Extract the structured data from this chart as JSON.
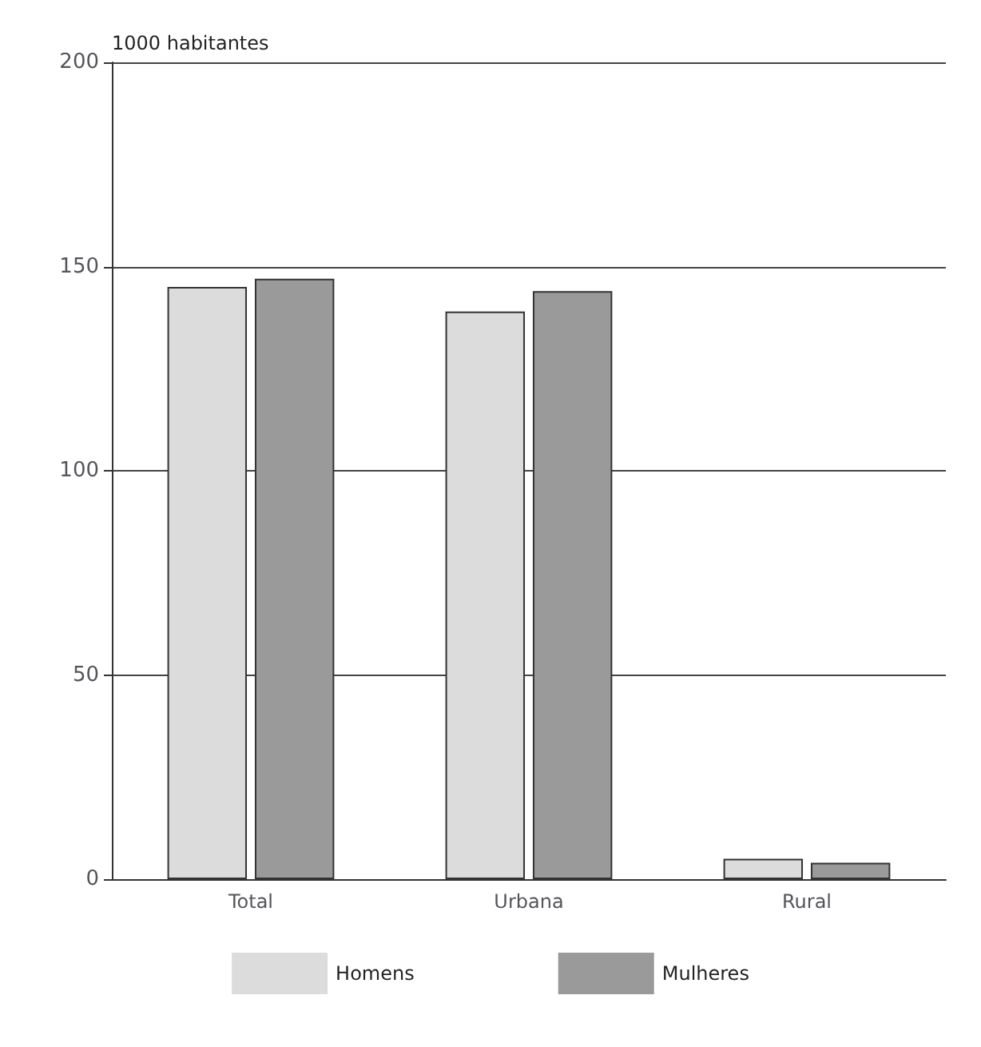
{
  "chart_data": {
    "type": "bar",
    "ylabel": "1000 habitantes",
    "categories": [
      "Total",
      "Urbana",
      "Rural"
    ],
    "series": [
      {
        "name": "Homens",
        "color": "#dcdcdc",
        "values": [
          145,
          139,
          5
        ]
      },
      {
        "name": "Mulheres",
        "color": "#9a9a9a",
        "values": [
          147,
          144,
          4
        ]
      }
    ],
    "ylim": [
      0,
      200
    ],
    "yticks": [
      0,
      50,
      100,
      150,
      200
    ],
    "grid": "y",
    "legend": "bottom"
  }
}
